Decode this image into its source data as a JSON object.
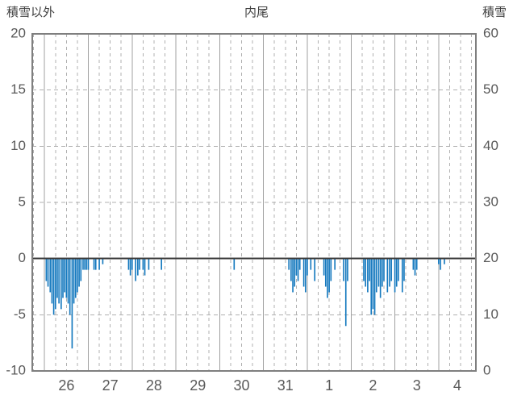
{
  "header": {
    "left_axis_title": "積雪以外",
    "title": "内尾",
    "right_axis_title": "積雪"
  },
  "chart_data": {
    "type": "bar",
    "title": "内尾",
    "left_axis": {
      "label": "積雪以外",
      "min": -10,
      "max": 20,
      "ticks": [
        20,
        15,
        10,
        5,
        0,
        -5,
        -10
      ]
    },
    "right_axis": {
      "label": "積雪",
      "min": 0,
      "max": 60,
      "ticks": [
        60,
        50,
        40,
        30,
        20,
        10,
        0
      ]
    },
    "x_axis": {
      "start_day": 25.72,
      "end_day": 35.85,
      "day_boundaries": [
        26,
        27,
        28,
        29,
        30,
        31,
        32,
        33,
        34,
        35
      ],
      "day_labels": [
        "26",
        "27",
        "28",
        "29",
        "30",
        "31",
        "1",
        "2",
        "3",
        "4"
      ]
    },
    "legend_position": "none",
    "grid": true,
    "bar_color": "#1378be",
    "bars": [
      [
        26.04,
        -2.0
      ],
      [
        26.08,
        -2.5
      ],
      [
        26.13,
        -3.0
      ],
      [
        26.17,
        -4.0
      ],
      [
        26.21,
        -5.0
      ],
      [
        26.25,
        -4.5
      ],
      [
        26.29,
        -3.5
      ],
      [
        26.33,
        -4.0
      ],
      [
        26.38,
        -4.5
      ],
      [
        26.42,
        -3.5
      ],
      [
        26.46,
        -3.0
      ],
      [
        26.5,
        -3.5
      ],
      [
        26.54,
        -4.0
      ],
      [
        26.58,
        -5.0
      ],
      [
        26.63,
        -8.0
      ],
      [
        26.67,
        -4.0
      ],
      [
        26.71,
        -3.5
      ],
      [
        26.75,
        -3.0
      ],
      [
        26.79,
        -2.5
      ],
      [
        26.83,
        -2.0
      ],
      [
        26.88,
        -1.0
      ],
      [
        26.92,
        -1.0
      ],
      [
        26.96,
        -1.0
      ],
      [
        27.0,
        -1.0
      ],
      [
        27.13,
        -1.0
      ],
      [
        27.17,
        -1.0
      ],
      [
        27.25,
        -1.0
      ],
      [
        27.33,
        -0.5
      ],
      [
        27.92,
        -1.0
      ],
      [
        27.96,
        -1.5
      ],
      [
        28.0,
        -1.0
      ],
      [
        28.08,
        -2.0
      ],
      [
        28.13,
        -1.5
      ],
      [
        28.17,
        -1.0
      ],
      [
        28.25,
        -1.0
      ],
      [
        28.29,
        -1.5
      ],
      [
        28.38,
        -1.0
      ],
      [
        28.67,
        -1.0
      ],
      [
        30.33,
        -1.0
      ],
      [
        31.58,
        -1.0
      ],
      [
        31.63,
        -2.0
      ],
      [
        31.67,
        -3.0
      ],
      [
        31.71,
        -2.5
      ],
      [
        31.75,
        -1.5
      ],
      [
        31.79,
        -2.0
      ],
      [
        31.83,
        -1.0
      ],
      [
        31.92,
        -2.5
      ],
      [
        31.96,
        -3.0
      ],
      [
        32.0,
        -1.5
      ],
      [
        32.08,
        -1.0
      ],
      [
        32.17,
        -2.0
      ],
      [
        32.38,
        -1.5
      ],
      [
        32.42,
        -2.5
      ],
      [
        32.46,
        -3.5
      ],
      [
        32.5,
        -3.0
      ],
      [
        32.54,
        -2.0
      ],
      [
        32.63,
        -1.0
      ],
      [
        32.83,
        -2.0
      ],
      [
        32.88,
        -6.0
      ],
      [
        32.92,
        -2.0
      ],
      [
        33.29,
        -2.0
      ],
      [
        33.33,
        -2.5
      ],
      [
        33.38,
        -3.0
      ],
      [
        33.42,
        -2.0
      ],
      [
        33.46,
        -5.0
      ],
      [
        33.5,
        -4.5
      ],
      [
        33.54,
        -5.0
      ],
      [
        33.58,
        -3.0
      ],
      [
        33.63,
        -2.5
      ],
      [
        33.67,
        -3.5
      ],
      [
        33.71,
        -2.5
      ],
      [
        33.75,
        -2.0
      ],
      [
        33.83,
        -3.0
      ],
      [
        33.88,
        -2.5
      ],
      [
        33.92,
        -2.0
      ],
      [
        34.0,
        -3.0
      ],
      [
        34.04,
        -2.5
      ],
      [
        34.08,
        -2.0
      ],
      [
        34.17,
        -3.0
      ],
      [
        34.21,
        -2.0
      ],
      [
        34.42,
        -1.0
      ],
      [
        34.46,
        -1.5
      ],
      [
        34.5,
        -1.0
      ],
      [
        35.0,
        -0.5
      ],
      [
        35.04,
        -1.0
      ],
      [
        35.13,
        -0.5
      ]
    ]
  },
  "colors": {
    "background": "#ffffff",
    "plot_background": "#ffffff",
    "border": "#7f7f7f",
    "grid_dashed": "#b0b0b0",
    "grid_solid": "#a0a0a0",
    "zero_line": "#3c3c3c",
    "tick_text": "#595959",
    "header_text": "#404040",
    "bar": "#1378be"
  }
}
